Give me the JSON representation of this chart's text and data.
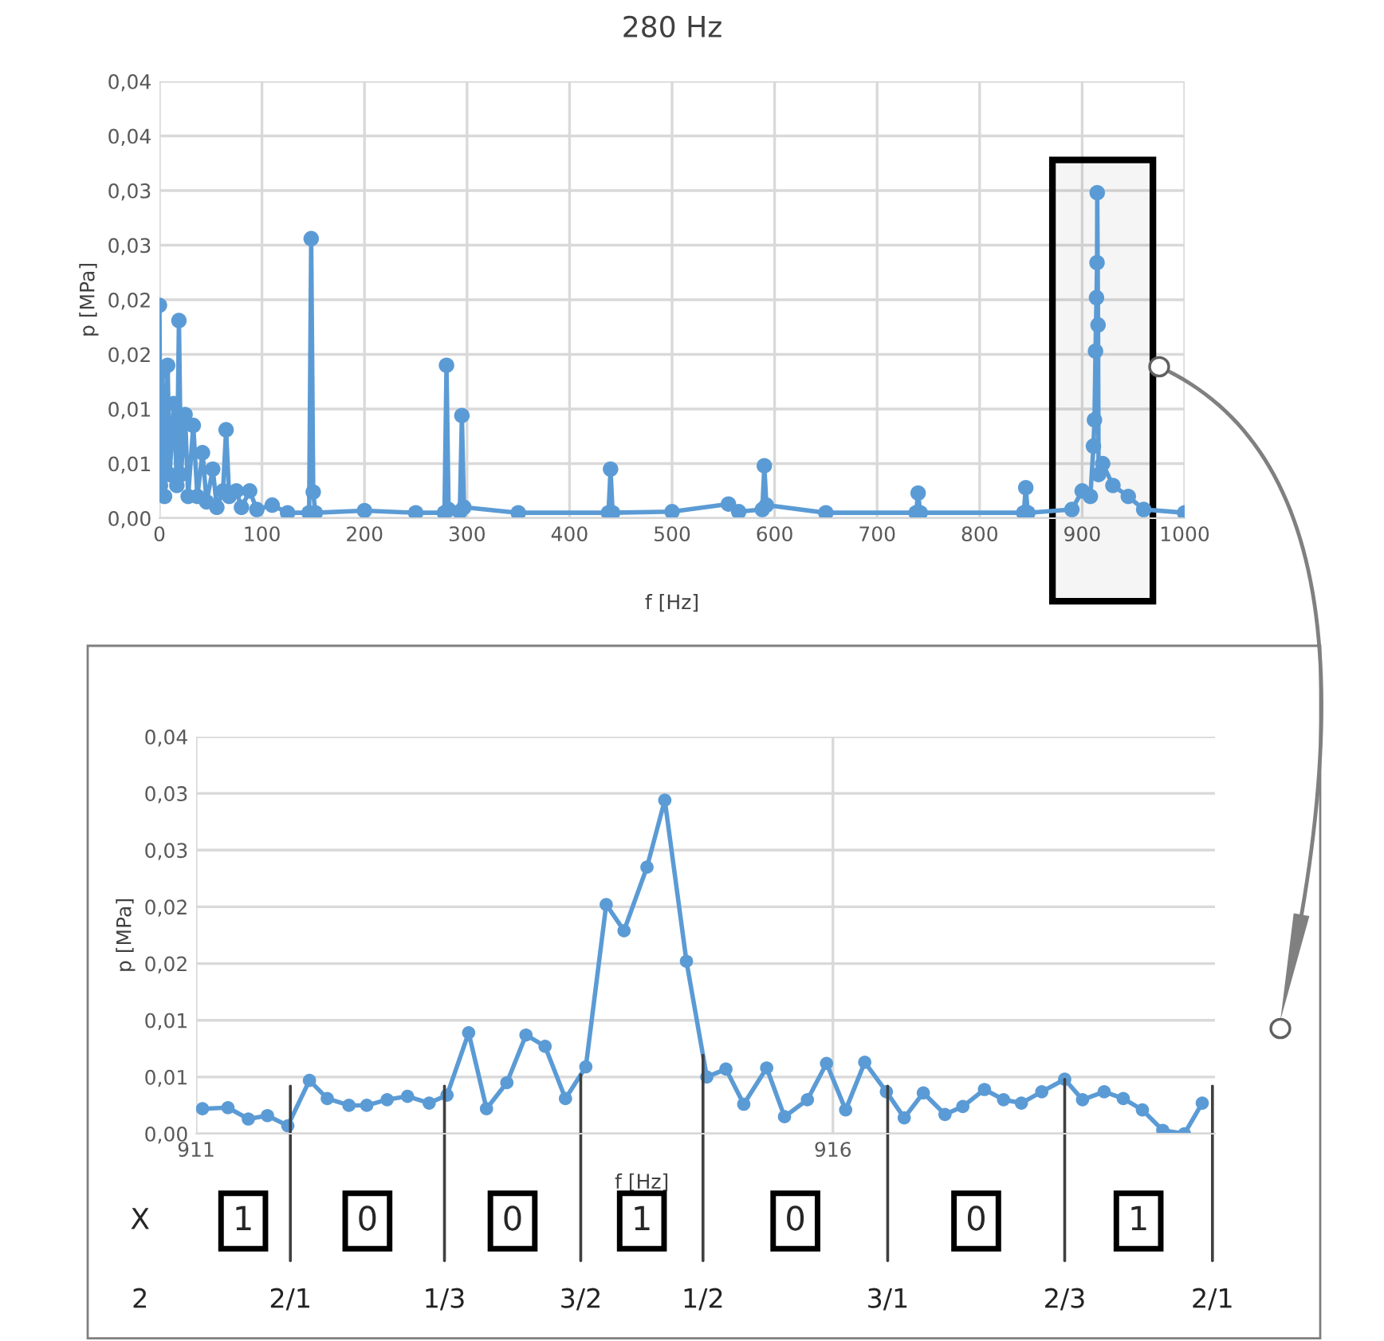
{
  "chart_data": [
    {
      "type": "line",
      "title": "280 Hz",
      "xlabel": "f [Hz]",
      "ylabel": "p [MPa]",
      "grid": true,
      "marker": "circle",
      "line_style": "solid",
      "xlim": [
        0,
        1000
      ],
      "xticks": [
        0,
        100,
        200,
        300,
        400,
        500,
        600,
        700,
        800,
        900,
        1000
      ],
      "ylim": [
        0,
        0.04
      ],
      "yticks": [
        {
          "value": 0,
          "label": "0,00"
        },
        {
          "value": 0.005,
          "label": "0,01"
        },
        {
          "value": 0.01,
          "label": "0,01"
        },
        {
          "value": 0.015,
          "label": "0,02"
        },
        {
          "value": 0.02,
          "label": "0,02"
        },
        {
          "value": 0.025,
          "label": "0,03"
        },
        {
          "value": 0.03,
          "label": "0,03"
        },
        {
          "value": 0.035,
          "label": "0,04"
        },
        {
          "value": 0.04,
          "label": "0,04"
        }
      ],
      "bands": [
        {
          "axis": "x",
          "from": 871,
          "to": 969,
          "color": "#000000"
        }
      ],
      "series": [
        {
          "color": "#5b9bd5",
          "x": [
            0,
            1,
            3,
            5,
            8,
            10,
            14,
            17,
            19,
            21,
            25,
            28,
            33,
            37,
            42,
            46,
            52,
            56,
            62,
            65,
            68,
            75,
            80,
            88,
            95,
            110,
            125,
            146,
            148,
            150,
            152,
            200,
            250,
            278,
            280,
            282,
            293,
            295,
            297,
            350,
            438,
            440,
            442,
            500,
            555,
            565,
            588,
            590,
            592,
            650,
            738,
            740,
            742,
            843,
            845,
            847,
            890,
            900,
            908,
            911,
            912,
            913,
            914,
            914.5,
            914.7,
            915.5,
            916,
            920,
            930,
            945,
            960,
            1000
          ],
          "values": [
            0.0195,
            0.003,
            0.0134,
            0.002,
            0.014,
            0.004,
            0.0105,
            0.003,
            0.0181,
            0.004,
            0.0095,
            0.002,
            0.0085,
            0.002,
            0.006,
            0.0015,
            0.0045,
            0.001,
            0.0025,
            0.0081,
            0.002,
            0.0025,
            0.001,
            0.0025,
            0.0008,
            0.0012,
            0.0005,
            0.0005,
            0.0256,
            0.0024,
            0.0005,
            0.0007,
            0.0005,
            0.0005,
            0.014,
            0.0008,
            0.0006,
            0.0094,
            0.001,
            0.0005,
            0.0005,
            0.0045,
            0.0005,
            0.0006,
            0.0013,
            0.0006,
            0.0008,
            0.0048,
            0.0012,
            0.0005,
            0.0005,
            0.0023,
            0.0005,
            0.0005,
            0.0028,
            0.0005,
            0.0008,
            0.0025,
            0.002,
            0.0066,
            0.009,
            0.0153,
            0.0202,
            0.0234,
            0.0298,
            0.0177,
            0.004,
            0.005,
            0.003,
            0.002,
            0.0008,
            0.0005
          ]
        }
      ]
    },
    {
      "type": "line",
      "xlabel": "f [Hz]",
      "ylabel": "p [MPa]",
      "grid": true,
      "marker": "circle",
      "line_style": "solid",
      "xlim": [
        911,
        919
      ],
      "xticks": [
        911,
        916
      ],
      "ylim": [
        0,
        0.035
      ],
      "yticks": [
        {
          "value": 0,
          "label": "0,00"
        },
        {
          "value": 0.005,
          "label": "0,01"
        },
        {
          "value": 0.01,
          "label": "0,01"
        },
        {
          "value": 0.015,
          "label": "0,02"
        },
        {
          "value": 0.02,
          "label": "0,02"
        },
        {
          "value": 0.025,
          "label": "0,03"
        },
        {
          "value": 0.03,
          "label": "0,03"
        },
        {
          "value": 0.035,
          "label": "0,04"
        }
      ],
      "ref_lines": [
        {
          "axis": "x",
          "value": 911.74,
          "color": "#404040"
        },
        {
          "axis": "x",
          "value": 912.95,
          "color": "#404040"
        },
        {
          "axis": "x",
          "value": 914.02,
          "color": "#404040"
        },
        {
          "axis": "x",
          "value": 914.98,
          "color": "#404040"
        },
        {
          "axis": "x",
          "value": 916.43,
          "color": "#404040"
        },
        {
          "axis": "x",
          "value": 917.82,
          "color": "#404040"
        },
        {
          "axis": "x",
          "value": 918.98,
          "color": "#404040"
        }
      ],
      "annotations": [
        "X",
        "2",
        "1",
        "2/1",
        "0",
        "1/3",
        "0",
        "3/2",
        "1",
        "1/2",
        "0",
        "3/1",
        "0",
        "2/3",
        "1",
        "2/1"
      ],
      "series": [
        {
          "color": "#5b9bd5",
          "x": [
            911.05,
            911.25,
            911.41,
            911.56,
            911.72,
            911.89,
            912.03,
            912.2,
            912.34,
            912.5,
            912.66,
            912.83,
            912.97,
            913.14,
            913.28,
            913.44,
            913.59,
            913.74,
            913.9,
            914.06,
            914.22,
            914.36,
            914.54,
            914.68,
            914.85,
            915.01,
            915.16,
            915.3,
            915.48,
            915.62,
            915.8,
            915.95,
            916.1,
            916.25,
            916.42,
            916.56,
            916.71,
            916.88,
            917.02,
            917.19,
            917.34,
            917.48,
            917.64,
            917.82,
            917.96,
            918.13,
            918.28,
            918.43,
            918.59,
            918.76,
            918.9
          ],
          "values": [
            0.0022,
            0.0023,
            0.0013,
            0.0016,
            0.0007,
            0.0047,
            0.0031,
            0.0025,
            0.0025,
            0.003,
            0.0033,
            0.0027,
            0.0034,
            0.0089,
            0.0022,
            0.0045,
            0.0087,
            0.0077,
            0.0031,
            0.0059,
            0.0202,
            0.0179,
            0.0235,
            0.0294,
            0.0152,
            0.005,
            0.0057,
            0.0026,
            0.0058,
            0.0015,
            0.003,
            0.0062,
            0.0021,
            0.0063,
            0.0037,
            0.0014,
            0.0036,
            0.0017,
            0.0024,
            0.0039,
            0.003,
            0.0027,
            0.0037,
            0.0048,
            0.003,
            0.0037,
            0.0031,
            0.0021,
            0.0003,
            0.0,
            0.0027
          ]
        }
      ]
    }
  ]
}
